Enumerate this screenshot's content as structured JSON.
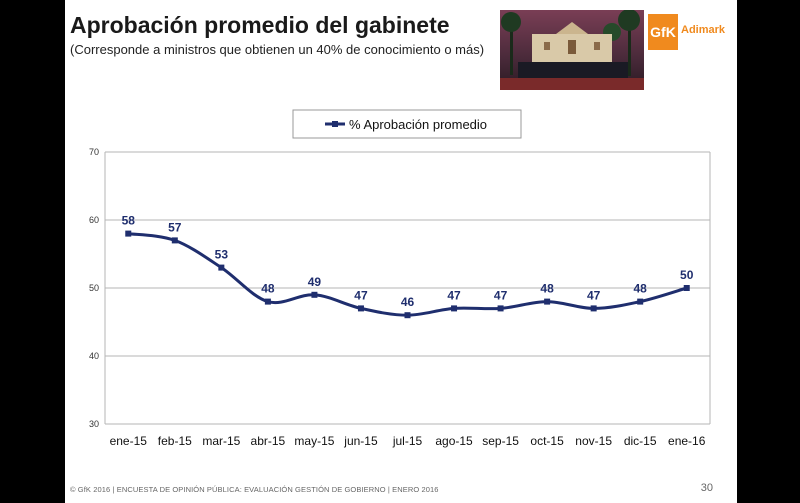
{
  "header": {
    "title": "Aprobación promedio del gabinete",
    "subtitle": "(Corresponde a ministros que obtienen un 40% de conocimiento o más)"
  },
  "logo": {
    "text": "GfK",
    "word": "Adimark",
    "color": "#f08a1e"
  },
  "footer": {
    "text": "© GfK 2016 | ENCUESTA DE OPINIÓN PÚBLICA: EVALUACIÓN GESTIÓN DE GOBIERNO | ENERO 2016",
    "page_number": "30"
  },
  "chart_data": {
    "type": "line",
    "categories": [
      "ene-15",
      "feb-15",
      "mar-15",
      "abr-15",
      "may-15",
      "jun-15",
      "jul-15",
      "ago-15",
      "sep-15",
      "oct-15",
      "nov-15",
      "dic-15",
      "ene-16"
    ],
    "series": [
      {
        "name": "% Aprobación promedio",
        "values": [
          58,
          57,
          53,
          48,
          49,
          47,
          46,
          47,
          47,
          48,
          47,
          48,
          50
        ],
        "color": "#1f2e6e"
      }
    ],
    "ylim": [
      30,
      70
    ],
    "yticks": [
      30,
      40,
      50,
      60,
      70
    ],
    "grid": true,
    "legend_position": "top-center",
    "smooth": true
  }
}
